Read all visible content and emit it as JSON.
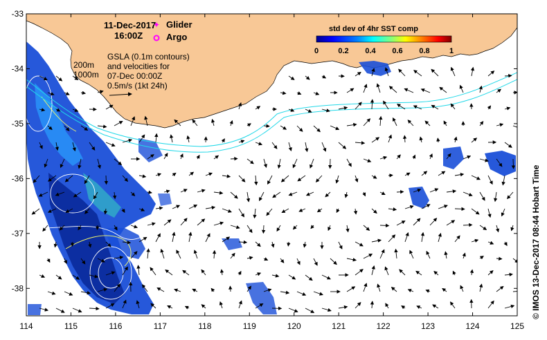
{
  "map": {
    "date": "11-Dec-2017",
    "time": "16:00Z",
    "legend": {
      "glider_label": "Glider",
      "argo_label": "Argo",
      "glider_color": "#ff00ff",
      "argo_color": "#ff00ff"
    },
    "isobaths": {
      "depth_200": "200m",
      "depth_1000": "1000m",
      "color": "#20d8e8"
    },
    "gsla_note": {
      "line1": "GSLA (0.1m contours)",
      "line2": "and velocities for",
      "line3": "07-Dec 00:00Z",
      "line4": "0.5m/s (1kt 24h)"
    },
    "colorbar": {
      "title": "std dev of 4hr SST comp",
      "ticks": [
        "0",
        "0.2",
        "0.4",
        "0.6",
        "0.8",
        "1"
      ],
      "colormap": [
        "#00008f",
        "#0000ff",
        "#0080ff",
        "#00ffff",
        "#80ff80",
        "#ffff00",
        "#ff8000",
        "#ff0000",
        "#800000"
      ]
    },
    "x_ticks": [
      "114",
      "115",
      "116",
      "117",
      "118",
      "119",
      "120",
      "121",
      "122",
      "123",
      "124",
      "125"
    ],
    "y_ticks": [
      "-33",
      "-34",
      "-35",
      "-36",
      "-37",
      "-38"
    ],
    "extent": {
      "lon": [
        114,
        125
      ],
      "lat": [
        -38.5,
        -33
      ]
    },
    "land_color": "#f8c896",
    "credit": "© IMOS 13-Dec-2017 08:44 Hobart Time"
  }
}
